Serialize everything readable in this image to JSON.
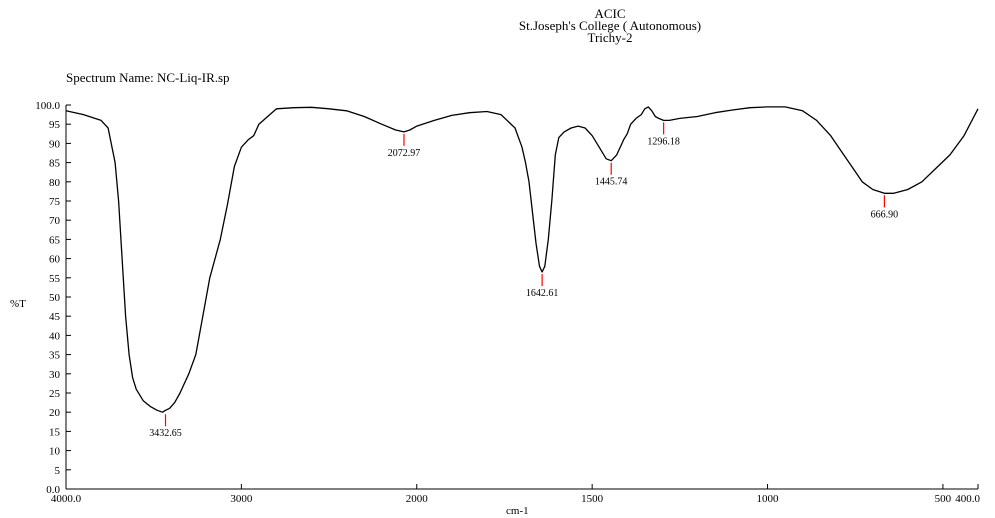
{
  "header": {
    "line1": "ACIC",
    "line2": "St.Joseph's College ( Autonomous)",
    "line3": "Trichy-2"
  },
  "spectrum_name": "Spectrum Name: NC-Liq-IR.sp",
  "chart_data": {
    "type": "line",
    "title": "",
    "xlabel": "cm-1",
    "ylabel": "%T",
    "xlim": [
      4000,
      400
    ],
    "ylim": [
      0,
      100
    ],
    "x_axis_break": "x-scale doubles below 2000 cm-1",
    "x_ticks": [
      {
        "value": 4000,
        "label": "4000.0"
      },
      {
        "value": 3000,
        "label": "3000"
      },
      {
        "value": 2000,
        "label": "2000"
      },
      {
        "value": 1500,
        "label": "1500"
      },
      {
        "value": 1000,
        "label": "1000"
      },
      {
        "value": 500,
        "label": "500"
      },
      {
        "value": 400,
        "label": "400.0"
      }
    ],
    "y_ticks": [
      {
        "value": 100,
        "label": "100.0"
      },
      {
        "value": 95,
        "label": "95"
      },
      {
        "value": 90,
        "label": "90"
      },
      {
        "value": 85,
        "label": "85"
      },
      {
        "value": 80,
        "label": "80"
      },
      {
        "value": 75,
        "label": "75"
      },
      {
        "value": 70,
        "label": "70"
      },
      {
        "value": 65,
        "label": "65"
      },
      {
        "value": 60,
        "label": "60"
      },
      {
        "value": 55,
        "label": "55"
      },
      {
        "value": 50,
        "label": "50"
      },
      {
        "value": 45,
        "label": "45"
      },
      {
        "value": 40,
        "label": "40"
      },
      {
        "value": 35,
        "label": "35"
      },
      {
        "value": 30,
        "label": "30"
      },
      {
        "value": 25,
        "label": "25"
      },
      {
        "value": 20,
        "label": "20"
      },
      {
        "value": 15,
        "label": "15"
      },
      {
        "value": 10,
        "label": "10"
      },
      {
        "value": 5,
        "label": "5"
      },
      {
        "value": 0,
        "label": "0.0"
      }
    ],
    "series": [
      {
        "color": "#000000",
        "points": [
          [
            4000,
            98.5
          ],
          [
            3900,
            97.5
          ],
          [
            3800,
            96
          ],
          [
            3760,
            94
          ],
          [
            3720,
            85
          ],
          [
            3700,
            75
          ],
          [
            3680,
            60
          ],
          [
            3660,
            45
          ],
          [
            3640,
            35
          ],
          [
            3620,
            29
          ],
          [
            3600,
            26
          ],
          [
            3560,
            23
          ],
          [
            3520,
            21.5
          ],
          [
            3480,
            20.5
          ],
          [
            3450,
            20
          ],
          [
            3432.65,
            20.5
          ],
          [
            3410,
            21
          ],
          [
            3380,
            22.5
          ],
          [
            3350,
            25
          ],
          [
            3300,
            30
          ],
          [
            3260,
            35
          ],
          [
            3220,
            45
          ],
          [
            3180,
            55
          ],
          [
            3120,
            65
          ],
          [
            3080,
            74
          ],
          [
            3040,
            84
          ],
          [
            3000,
            89
          ],
          [
            2960,
            91
          ],
          [
            2930,
            92
          ],
          [
            2900,
            95
          ],
          [
            2850,
            97
          ],
          [
            2800,
            99
          ],
          [
            2700,
            99.3
          ],
          [
            2600,
            99.4
          ],
          [
            2500,
            99
          ],
          [
            2400,
            98.5
          ],
          [
            2300,
            97
          ],
          [
            2200,
            95
          ],
          [
            2120,
            93.5
          ],
          [
            2072.97,
            93
          ],
          [
            2040,
            93.5
          ],
          [
            2000,
            94.5
          ],
          [
            1950,
            96
          ],
          [
            1900,
            97.3
          ],
          [
            1850,
            98
          ],
          [
            1800,
            98.3
          ],
          [
            1760,
            97.5
          ],
          [
            1720,
            94
          ],
          [
            1700,
            89
          ],
          [
            1690,
            85
          ],
          [
            1680,
            80
          ],
          [
            1670,
            72
          ],
          [
            1660,
            64
          ],
          [
            1650,
            58
          ],
          [
            1642.61,
            56.5
          ],
          [
            1635,
            58
          ],
          [
            1625,
            65
          ],
          [
            1615,
            75
          ],
          [
            1605,
            87
          ],
          [
            1595,
            91.5
          ],
          [
            1580,
            93
          ],
          [
            1560,
            94
          ],
          [
            1540,
            94.5
          ],
          [
            1520,
            94
          ],
          [
            1500,
            92
          ],
          [
            1480,
            89
          ],
          [
            1460,
            86
          ],
          [
            1445.74,
            85.5
          ],
          [
            1430,
            87
          ],
          [
            1410,
            91
          ],
          [
            1400,
            92.5
          ],
          [
            1390,
            95
          ],
          [
            1375,
            96.5
          ],
          [
            1360,
            97.5
          ],
          [
            1350,
            99
          ],
          [
            1340,
            99.5
          ],
          [
            1330,
            98.5
          ],
          [
            1320,
            97
          ],
          [
            1310,
            96.5
          ],
          [
            1296.18,
            96
          ],
          [
            1280,
            96
          ],
          [
            1250,
            96.5
          ],
          [
            1200,
            97
          ],
          [
            1150,
            98
          ],
          [
            1100,
            98.7
          ],
          [
            1050,
            99.3
          ],
          [
            1000,
            99.5
          ],
          [
            950,
            99.5
          ],
          [
            900,
            98.5
          ],
          [
            860,
            96
          ],
          [
            820,
            92
          ],
          [
            790,
            88
          ],
          [
            760,
            84
          ],
          [
            730,
            80
          ],
          [
            700,
            78
          ],
          [
            666.9,
            77
          ],
          [
            640,
            77
          ],
          [
            600,
            78
          ],
          [
            560,
            80
          ],
          [
            520,
            83.5
          ],
          [
            480,
            87
          ],
          [
            440,
            92
          ],
          [
            400,
            99
          ]
        ]
      }
    ],
    "peak_labels": [
      {
        "x": 3432.65,
        "y": 20,
        "label": "3432.65"
      },
      {
        "x": 2072.97,
        "y": 93,
        "label": "2072.97"
      },
      {
        "x": 1642.61,
        "y": 56.5,
        "label": "1642.61"
      },
      {
        "x": 1445.74,
        "y": 85.5,
        "label": "1445.74"
      },
      {
        "x": 1296.18,
        "y": 96,
        "label": "1296.18"
      },
      {
        "x": 666.9,
        "y": 77,
        "label": "666.90"
      }
    ],
    "marker_color": "#ff0000",
    "grid": false,
    "legend": "none"
  }
}
